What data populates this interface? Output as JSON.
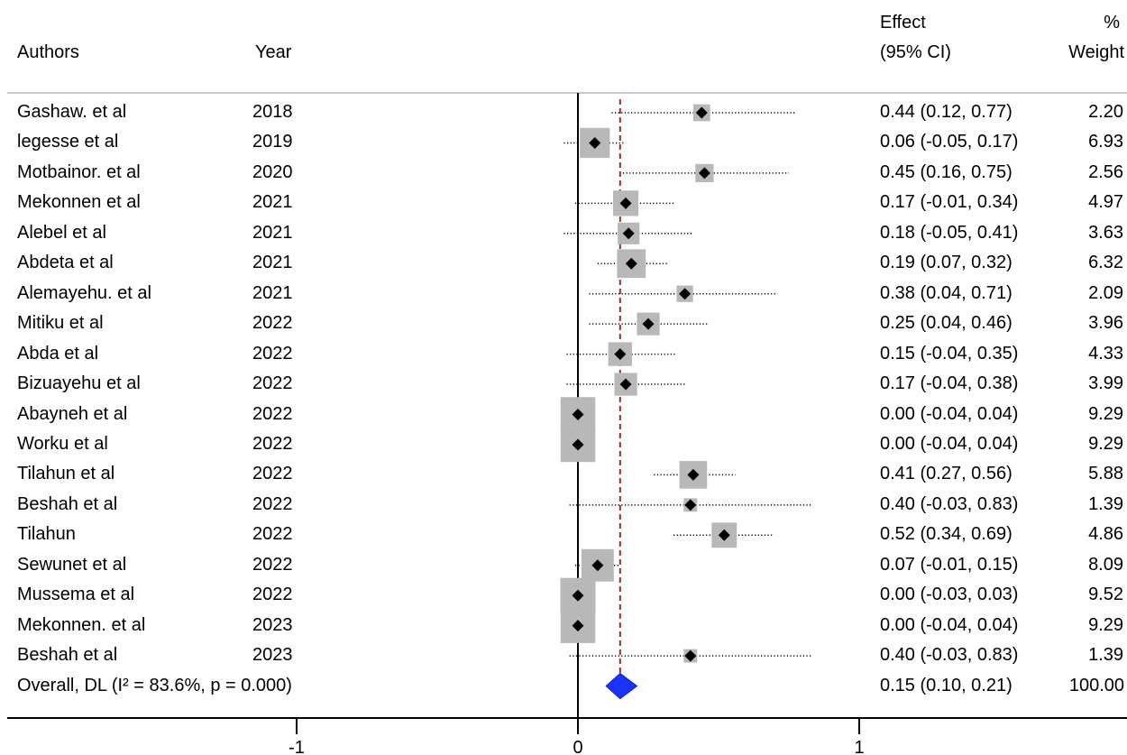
{
  "headers": {
    "authors": "Authors",
    "year": "Year",
    "effect_line1": "Effect",
    "effect_line2": "(95% CI)",
    "weight_line1": "%",
    "weight_line2": "Weight"
  },
  "chart_data": {
    "type": "forest",
    "xlim": [
      -1,
      1
    ],
    "xticks": [
      -1,
      0,
      1
    ],
    "xticklabels": [
      "-1",
      "0",
      "1"
    ],
    "colors": {
      "box": "#b8b8b8",
      "diamond": "#1a33ff",
      "ref_line": "#a52a2a"
    },
    "studies": [
      {
        "author": "Gashaw. et al",
        "year": "2018",
        "est": 0.44,
        "lo": 0.12,
        "hi": 0.77,
        "ci_text": "0.44 (0.12, 0.77)",
        "weight": 2.2,
        "weight_text": "2.20"
      },
      {
        "author": "legesse et al",
        "year": "2019",
        "est": 0.06,
        "lo": -0.05,
        "hi": 0.17,
        "ci_text": "0.06 (-0.05, 0.17)",
        "weight": 6.93,
        "weight_text": "6.93"
      },
      {
        "author": "Motbainor. et al",
        "year": "2020",
        "est": 0.45,
        "lo": 0.16,
        "hi": 0.75,
        "ci_text": "0.45 (0.16, 0.75)",
        "weight": 2.56,
        "weight_text": "2.56"
      },
      {
        "author": "Mekonnen et al",
        "year": "2021",
        "est": 0.17,
        "lo": -0.01,
        "hi": 0.34,
        "ci_text": "0.17 (-0.01, 0.34)",
        "weight": 4.97,
        "weight_text": "4.97"
      },
      {
        "author": "Alebel et al",
        "year": "2021",
        "est": 0.18,
        "lo": -0.05,
        "hi": 0.41,
        "ci_text": "0.18 (-0.05, 0.41)",
        "weight": 3.63,
        "weight_text": "3.63"
      },
      {
        "author": "Abdeta et al",
        "year": "2021",
        "est": 0.19,
        "lo": 0.07,
        "hi": 0.32,
        "ci_text": "0.19 (0.07, 0.32)",
        "weight": 6.32,
        "weight_text": "6.32"
      },
      {
        "author": "Alemayehu. et al",
        "year": "2021",
        "est": 0.38,
        "lo": 0.04,
        "hi": 0.71,
        "ci_text": "0.38 (0.04, 0.71)",
        "weight": 2.09,
        "weight_text": "2.09"
      },
      {
        "author": "Mitiku et al",
        "year": "2022",
        "est": 0.25,
        "lo": 0.04,
        "hi": 0.46,
        "ci_text": "0.25 (0.04, 0.46)",
        "weight": 3.96,
        "weight_text": "3.96"
      },
      {
        "author": "Abda et al",
        "year": "2022",
        "est": 0.15,
        "lo": -0.04,
        "hi": 0.35,
        "ci_text": "0.15 (-0.04, 0.35)",
        "weight": 4.33,
        "weight_text": "4.33"
      },
      {
        "author": "Bizuayehu et al",
        "year": "2022",
        "est": 0.17,
        "lo": -0.04,
        "hi": 0.38,
        "ci_text": "0.17 (-0.04, 0.38)",
        "weight": 3.99,
        "weight_text": "3.99"
      },
      {
        "author": "Abayneh et al",
        "year": "2022",
        "est": 0.0,
        "lo": -0.04,
        "hi": 0.04,
        "ci_text": "0.00 (-0.04, 0.04)",
        "weight": 9.29,
        "weight_text": "9.29"
      },
      {
        "author": "Worku et al",
        "year": "2022",
        "est": 0.0,
        "lo": -0.04,
        "hi": 0.04,
        "ci_text": "0.00 (-0.04, 0.04)",
        "weight": 9.29,
        "weight_text": "9.29"
      },
      {
        "author": "Tilahun et al",
        "year": "2022",
        "est": 0.41,
        "lo": 0.27,
        "hi": 0.56,
        "ci_text": "0.41 (0.27, 0.56)",
        "weight": 5.88,
        "weight_text": "5.88"
      },
      {
        "author": "Beshah et al",
        "year": "2022",
        "est": 0.4,
        "lo": -0.03,
        "hi": 0.83,
        "ci_text": "0.40 (-0.03, 0.83)",
        "weight": 1.39,
        "weight_text": "1.39"
      },
      {
        "author": "Tilahun",
        "year": "2022",
        "est": 0.52,
        "lo": 0.34,
        "hi": 0.69,
        "ci_text": "0.52 (0.34, 0.69)",
        "weight": 4.86,
        "weight_text": "4.86"
      },
      {
        "author": "Sewunet et al",
        "year": "2022",
        "est": 0.07,
        "lo": -0.01,
        "hi": 0.15,
        "ci_text": "0.07 (-0.01, 0.15)",
        "weight": 8.09,
        "weight_text": "8.09"
      },
      {
        "author": "Mussema et al",
        "year": "2022",
        "est": 0.0,
        "lo": -0.03,
        "hi": 0.03,
        "ci_text": "0.00 (-0.03, 0.03)",
        "weight": 9.52,
        "weight_text": "9.52"
      },
      {
        "author": "Mekonnen. et al",
        "year": "2023",
        "est": 0.0,
        "lo": -0.04,
        "hi": 0.04,
        "ci_text": "0.00 (-0.04, 0.04)",
        "weight": 9.29,
        "weight_text": "9.29"
      },
      {
        "author": "Beshah et al",
        "year": "2023",
        "est": 0.4,
        "lo": -0.03,
        "hi": 0.83,
        "ci_text": "0.40 (-0.03, 0.83)",
        "weight": 1.39,
        "weight_text": "1.39"
      }
    ],
    "overall": {
      "label": "Overall, DL (I² = 83.6%, p = 0.000)",
      "est": 0.15,
      "lo": 0.1,
      "hi": 0.21,
      "ci_text": "0.15 (0.10, 0.21)",
      "weight_text": "100.00"
    }
  }
}
